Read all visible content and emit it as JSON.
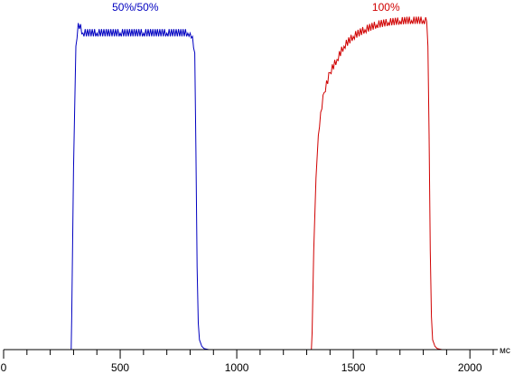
{
  "chart_data": {
    "type": "line",
    "title": "",
    "xlabel": "мс",
    "ylabel": "",
    "xlim": [
      0,
      2100
    ],
    "xticks": [
      0,
      500,
      1000,
      1500,
      2000
    ],
    "y_axis_labels": false,
    "grid": false,
    "series": [
      {
        "name": "50%/50%",
        "color": "#0000c0",
        "x": [
          0,
          290,
          292,
          300,
          310,
          320,
          340,
          400,
          500,
          600,
          700,
          790,
          800,
          810,
          820,
          825,
          830,
          835,
          840,
          850,
          860,
          880,
          900,
          1000,
          1100
        ],
        "y": [
          0,
          0,
          10,
          55,
          92,
          99,
          96,
          96,
          96,
          96,
          96,
          96,
          96,
          95,
          90,
          60,
          25,
          8,
          3,
          1,
          0.3,
          0,
          0,
          0,
          0
        ]
      },
      {
        "name": "100%",
        "color": "#d00000",
        "x": [
          1100,
          1200,
          1320,
          1323,
          1330,
          1340,
          1350,
          1360,
          1375,
          1400,
          1430,
          1460,
          1500,
          1550,
          1600,
          1650,
          1700,
          1750,
          1800,
          1815,
          1820,
          1825,
          1830,
          1835,
          1840,
          1850,
          1860,
          1880,
          1900,
          2000,
          2100
        ],
        "y": [
          0,
          0,
          0,
          5,
          30,
          52,
          65,
          72,
          78,
          84,
          88,
          92,
          95,
          97,
          98.5,
          99.2,
          99.6,
          99.8,
          99.8,
          99.5,
          92,
          65,
          30,
          10,
          3,
          1,
          0.3,
          0,
          0,
          0,
          0
        ]
      }
    ]
  }
}
